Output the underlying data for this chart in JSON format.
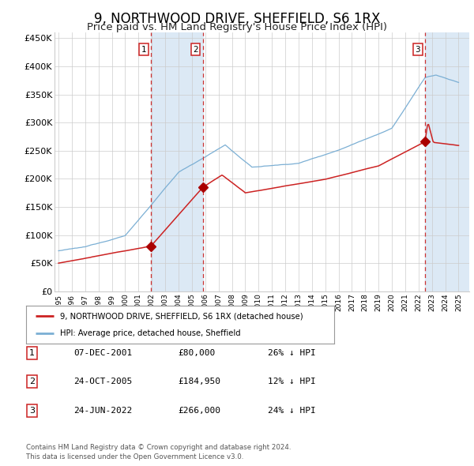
{
  "title": "9, NORTHWOOD DRIVE, SHEFFIELD, S6 1RX",
  "subtitle": "Price paid vs. HM Land Registry's House Price Index (HPI)",
  "title_fontsize": 12,
  "subtitle_fontsize": 9.5,
  "ylabel_ticks": [
    "£0",
    "£50K",
    "£100K",
    "£150K",
    "£200K",
    "£250K",
    "£300K",
    "£350K",
    "£400K",
    "£450K"
  ],
  "ytick_values": [
    0,
    50000,
    100000,
    150000,
    200000,
    250000,
    300000,
    350000,
    400000,
    450000
  ],
  "ylim": [
    0,
    460000
  ],
  "xlim_start": 1994.7,
  "xlim_end": 2025.8,
  "transaction1": {
    "date_num": 2001.93,
    "price": 80000,
    "label": "1",
    "date_str": "07-DEC-2001",
    "price_str": "£80,000",
    "hpi_str": "26% ↓ HPI"
  },
  "transaction2": {
    "date_num": 2005.82,
    "price": 184950,
    "label": "2",
    "date_str": "24-OCT-2005",
    "price_str": "£184,950",
    "hpi_str": "12% ↓ HPI"
  },
  "transaction3": {
    "date_num": 2022.48,
    "price": 266000,
    "label": "3",
    "date_str": "24-JUN-2022",
    "price_str": "£266,000",
    "hpi_str": "24% ↓ HPI"
  },
  "hpi_line_color": "#7bafd4",
  "price_line_color": "#cc2222",
  "marker_color": "#aa0000",
  "dashed_line_color": "#cc3333",
  "shade_color": "#dce9f5",
  "grid_color": "#cccccc",
  "legend_label_red": "9, NORTHWOOD DRIVE, SHEFFIELD, S6 1RX (detached house)",
  "legend_label_blue": "HPI: Average price, detached house, Sheffield",
  "footnote": "Contains HM Land Registry data © Crown copyright and database right 2024.\nThis data is licensed under the Open Government Licence v3.0.",
  "background_color": "#ffffff"
}
